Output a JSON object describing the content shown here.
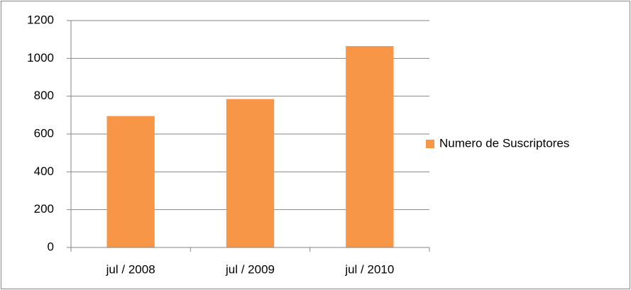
{
  "chart_data": {
    "type": "bar",
    "categories": [
      "jul / 2008",
      "jul / 2009",
      "jul / 2010"
    ],
    "series": [
      {
        "name": "Numero de Suscriptores",
        "color": "#f79646",
        "values": [
          695,
          785,
          1065
        ]
      }
    ],
    "ylim": [
      0,
      1200
    ],
    "yticks": [
      0,
      200,
      400,
      600,
      800,
      1000,
      1200
    ],
    "grid": true,
    "legend": "right"
  }
}
